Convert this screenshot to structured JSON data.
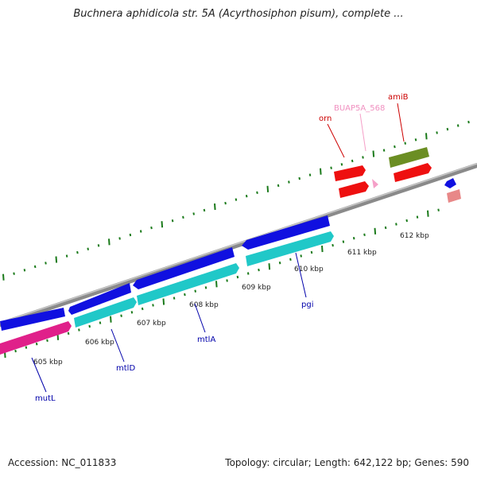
{
  "title": "Buchnera aphidicola str. 5A (Acyrthosiphon pisum), complete ...",
  "footer": {
    "accession": "Accession: NC_011833",
    "summary": "Topology: circular; Length: 642,122 bp; Genes: 590"
  },
  "ticks": [
    "605 kbp",
    "606 kbp",
    "607 kbp",
    "608 kbp",
    "609 kbp",
    "610 kbp",
    "611 kbp",
    "612 kbp"
  ],
  "genes": [
    {
      "name": "mutL",
      "color": "#0000aa"
    },
    {
      "name": "mtlD",
      "color": "#0000aa"
    },
    {
      "name": "mtlA",
      "color": "#0000aa"
    },
    {
      "name": "pgi",
      "color": "#0000aa"
    },
    {
      "name": "orn",
      "color": "#cc0000"
    },
    {
      "name": "BUAP5A_568",
      "color": "#f08ab8"
    },
    {
      "name": "amiB",
      "color": "#cc0000"
    }
  ],
  "colors": {
    "backbone": "#808080",
    "tick_marks": "#1a7a1a",
    "cds_blue": "#1010e0",
    "cds_cyan": "#20c8c8",
    "cds_magenta": "#e0208a",
    "cds_red": "#ee1010",
    "cds_olive": "#6b8e23",
    "cds_pink": "#e88888"
  }
}
